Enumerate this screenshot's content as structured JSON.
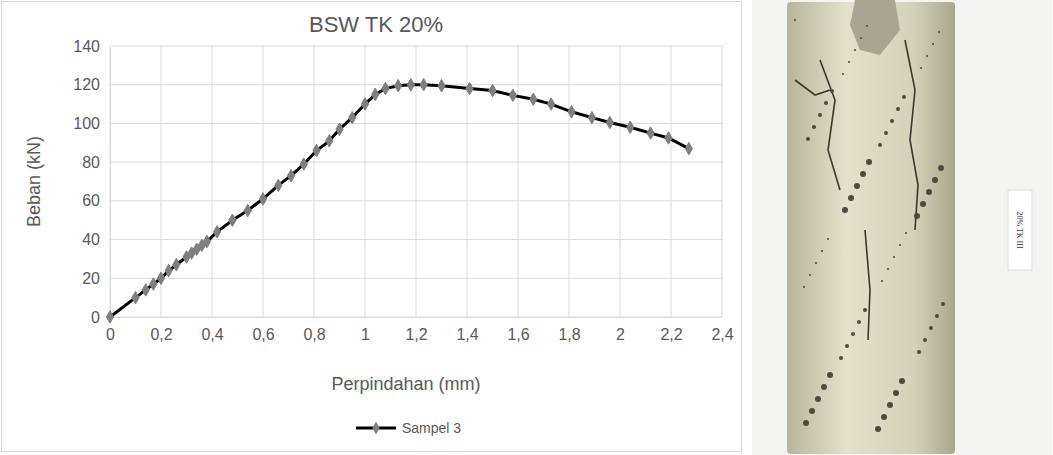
{
  "chart_data": {
    "type": "line",
    "title": "BSW TK 20%",
    "x_label": "Perpindahan (mm)",
    "y_label": "Beban (kN)",
    "x": [
      0,
      0.1,
      0.14,
      0.17,
      0.2,
      0.23,
      0.26,
      0.3,
      0.32,
      0.34,
      0.36,
      0.38,
      0.42,
      0.48,
      0.54,
      0.6,
      0.66,
      0.71,
      0.76,
      0.81,
      0.86,
      0.9,
      0.95,
      1.0,
      1.04,
      1.08,
      1.13,
      1.18,
      1.23,
      1.3,
      1.41,
      1.5,
      1.58,
      1.66,
      1.73,
      1.81,
      1.89,
      1.96,
      2.04,
      2.12,
      2.19,
      2.27
    ],
    "series": [
      {
        "name": "Sampel 3",
        "color": "#000000",
        "marker": "diamond",
        "line_style": "solid",
        "values": [
          0,
          10,
          14,
          17,
          20,
          24,
          27,
          31,
          33,
          35,
          37,
          39,
          44,
          50,
          55,
          61,
          68,
          73,
          79,
          86,
          91,
          97,
          103,
          110,
          115,
          118,
          119.5,
          120,
          120,
          119.5,
          118,
          117,
          114.5,
          112.5,
          110,
          106,
          103,
          100.5,
          98,
          95,
          92.5,
          87
        ]
      }
    ],
    "xlim": [
      0,
      2.4
    ],
    "xticks": [
      0,
      {
        "value": 0.2,
        "label": "0,2"
      },
      {
        "value": 0.4,
        "label": "0,4"
      },
      {
        "value": 0.6,
        "label": "0,6"
      },
      {
        "value": 0.8,
        "label": "0,8"
      },
      1,
      {
        "value": 1.2,
        "label": "1,2"
      },
      {
        "value": 1.4,
        "label": "1,4"
      },
      {
        "value": 1.6,
        "label": "1,6"
      },
      {
        "value": 1.8,
        "label": "1,8"
      },
      2,
      {
        "value": 2.2,
        "label": "2,2"
      },
      {
        "value": 2.4,
        "label": "2,4"
      }
    ],
    "ylim": [
      0,
      140
    ],
    "yticks": [
      0,
      20,
      40,
      60,
      80,
      100,
      120,
      140
    ],
    "grid": true,
    "legend": "bottom",
    "annotations": [
      "20% TK III"
    ]
  }
}
